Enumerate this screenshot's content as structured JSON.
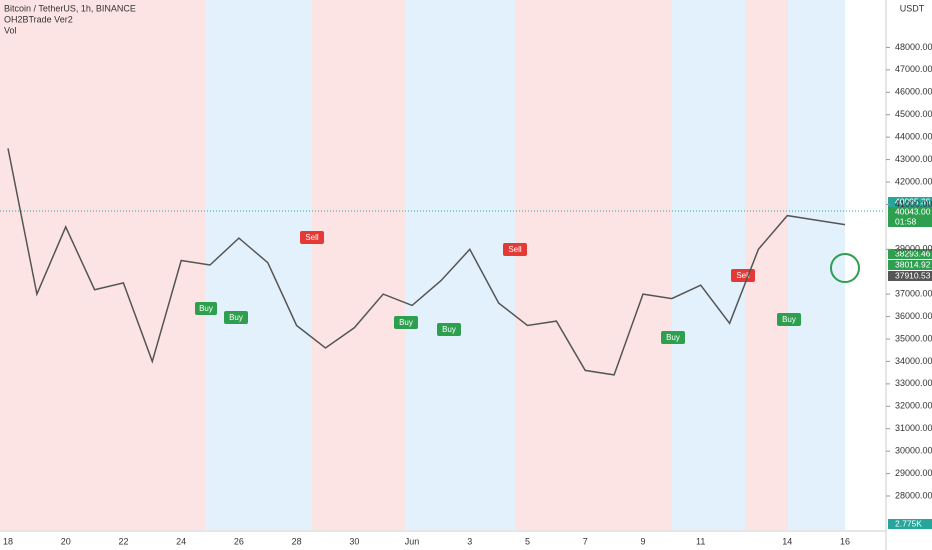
{
  "chart_data": {
    "type": "line",
    "categories": [
      "18",
      null,
      "20",
      null,
      "22",
      null,
      "24",
      null,
      "26",
      null,
      "28",
      null,
      "30",
      null,
      "Jun",
      null,
      "3",
      null,
      "5",
      null,
      "7",
      null,
      "9",
      null,
      "11",
      null,
      null,
      "14",
      null,
      "16"
    ],
    "values": [
      43500,
      37000,
      40000,
      37200,
      37500,
      34000,
      38500,
      38300,
      39500,
      38400,
      35600,
      34600,
      35500,
      37000,
      36500,
      37600,
      39000,
      36600,
      35600,
      35800,
      33600,
      33400,
      37000,
      36800,
      37400,
      35700,
      39000,
      40500,
      40300,
      40100
    ],
    "color": "#555555",
    "ylim": [
      27000,
      49500
    ],
    "yticks": [
      {
        "value": 28000,
        "label": "28000.00"
      },
      {
        "value": 29000,
        "label": "29000.00"
      },
      {
        "value": 30000,
        "label": "30000.00"
      },
      {
        "value": 31000,
        "label": "31000.00"
      },
      {
        "value": 32000,
        "label": "32000.00"
      },
      {
        "value": 33000,
        "label": "33000.00"
      },
      {
        "value": 34000,
        "label": "34000.00"
      },
      {
        "value": 35000,
        "label": "35000.00"
      },
      {
        "value": 36000,
        "label": "36000.00"
      },
      {
        "value": 37000,
        "label": "37000.00"
      },
      {
        "value": 39000,
        "label": "39000.00"
      },
      {
        "value": 41000,
        "label": "41000.00"
      },
      {
        "value": 42000,
        "label": "42000.00"
      },
      {
        "value": 43000,
        "label": "43000.00"
      },
      {
        "value": 44000,
        "label": "44000.00"
      },
      {
        "value": 45000,
        "label": "45000.00"
      },
      {
        "value": 46000,
        "label": "46000.00"
      },
      {
        "value": 47000,
        "label": "47000.00"
      },
      {
        "value": 48000,
        "label": "48000.00"
      }
    ],
    "legend": [
      "Bitcoin / TetherUS, 1h, BINANCE",
      "OH2BTrade Ver2",
      "Vol"
    ],
    "currency": "USDT",
    "signals": [
      "Buy",
      "Buy",
      "Sell",
      "Buy",
      "Buy",
      "Sell",
      "Buy",
      "Sell",
      "Buy"
    ],
    "price_badges": [
      "40095.39",
      "40043.00",
      "01:58",
      "38293.46",
      "38014.92",
      "37910.53",
      "2.775K"
    ]
  }
}
